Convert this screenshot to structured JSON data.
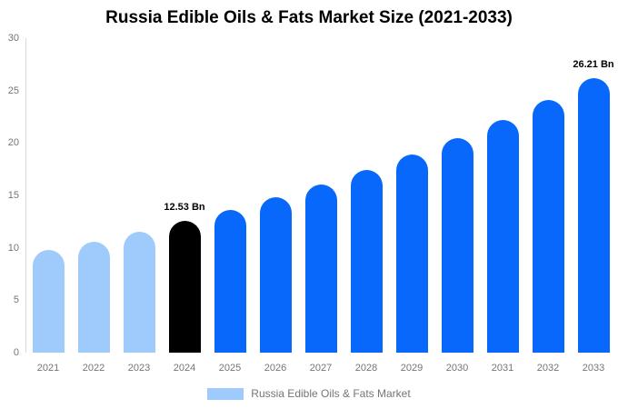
{
  "title": "Russia Edible Oils & Fats Market Size (2021-2033)",
  "legend": {
    "label": "Russia Edible Oils & Fats Market",
    "swatch_color": "#9fcbfc"
  },
  "colors": {
    "historical_bar": "#9fcbfc",
    "highlight_bar": "#000000",
    "forecast_bar": "#0768fb",
    "axis_line": "#d9d9d9",
    "tick_text": "#757575",
    "title_text": "#000000",
    "value_label_text": "#000000"
  },
  "chart_data": {
    "type": "bar",
    "title": "Russia Edible Oils & Fats Market Size (2021-2033)",
    "xlabel": "",
    "ylabel": "",
    "categories": [
      "2021",
      "2022",
      "2023",
      "2024",
      "2025",
      "2026",
      "2027",
      "2028",
      "2029",
      "2030",
      "2031",
      "2032",
      "2033"
    ],
    "values": [
      9.8,
      10.6,
      11.5,
      12.53,
      13.6,
      14.8,
      16.0,
      17.4,
      18.9,
      20.5,
      22.2,
      24.1,
      26.21
    ],
    "unit": "Bn",
    "bar_colors": [
      "#9fcbfc",
      "#9fcbfc",
      "#9fcbfc",
      "#000000",
      "#0768fb",
      "#0768fb",
      "#0768fb",
      "#0768fb",
      "#0768fb",
      "#0768fb",
      "#0768fb",
      "#0768fb",
      "#0768fb"
    ],
    "annotations": [
      {
        "category_index": 3,
        "text": "12.53 Bn"
      },
      {
        "category_index": 12,
        "text": "26.21 Bn"
      }
    ],
    "ylim": [
      0,
      30
    ],
    "yticks": [
      0,
      5,
      10,
      15,
      20,
      25,
      30
    ],
    "grid": false,
    "legend_position": "bottom",
    "legend_entries": [
      "Russia Edible Oils & Fats Market"
    ]
  }
}
